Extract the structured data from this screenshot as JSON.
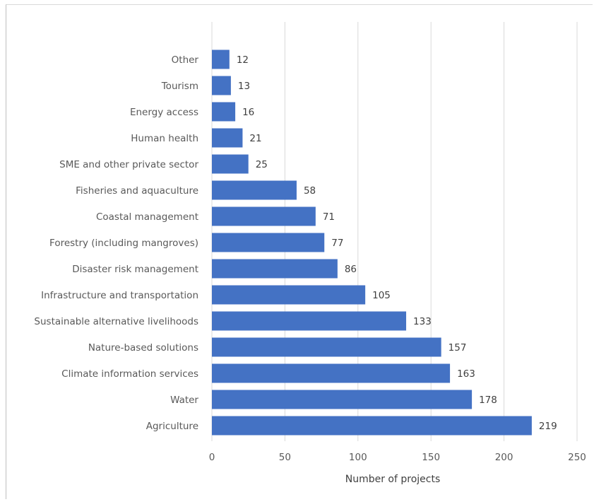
{
  "chart_data": {
    "type": "bar",
    "orientation": "horizontal",
    "categories": [
      "Other",
      "Tourism",
      "Energy access",
      "Human health",
      "SME and other private sector",
      "Fisheries and aquaculture",
      "Coastal management",
      "Forestry (including mangroves)",
      "Disaster risk management",
      "Infrastructure and transportation",
      "Sustainable alternative livelihoods",
      "Nature-based solutions",
      "Climate information services",
      "Water",
      "Agriculture"
    ],
    "values": [
      12,
      13,
      16,
      21,
      25,
      58,
      71,
      77,
      86,
      105,
      133,
      157,
      163,
      178,
      219
    ],
    "title": "",
    "xlabel": "Number of projects",
    "ylabel": "",
    "xlim": [
      0,
      250
    ],
    "xticks": [
      0,
      50,
      100,
      150,
      200,
      250
    ],
    "grid": "vertical",
    "legend": "none",
    "bar_color": "#4472c4",
    "data_labels": true
  }
}
